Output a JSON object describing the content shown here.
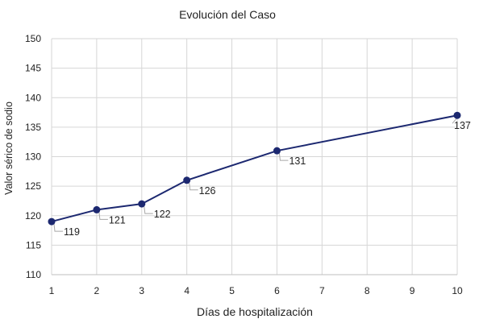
{
  "chart_data": {
    "type": "line",
    "title": "Evolución del Caso",
    "xlabel": "Días de hospitalización",
    "ylabel": "Valor sérico de sodio",
    "xlim": [
      1,
      10
    ],
    "ylim": [
      110,
      150
    ],
    "x_ticks": [
      "1",
      "2",
      "3",
      "4",
      "5",
      "6",
      "7",
      "8",
      "9",
      "10"
    ],
    "y_ticks": [
      "110",
      "115",
      "120",
      "125",
      "130",
      "135",
      "140",
      "145",
      "150"
    ],
    "grid": true,
    "legend": "none",
    "series": [
      {
        "x": [
          1,
          2,
          3,
          4,
          6,
          10
        ],
        "y": [
          119,
          121,
          122,
          126,
          131,
          137
        ],
        "labels": [
          "119",
          "121",
          "122",
          "126",
          "131",
          "137"
        ],
        "color": "#1c2870"
      }
    ]
  }
}
